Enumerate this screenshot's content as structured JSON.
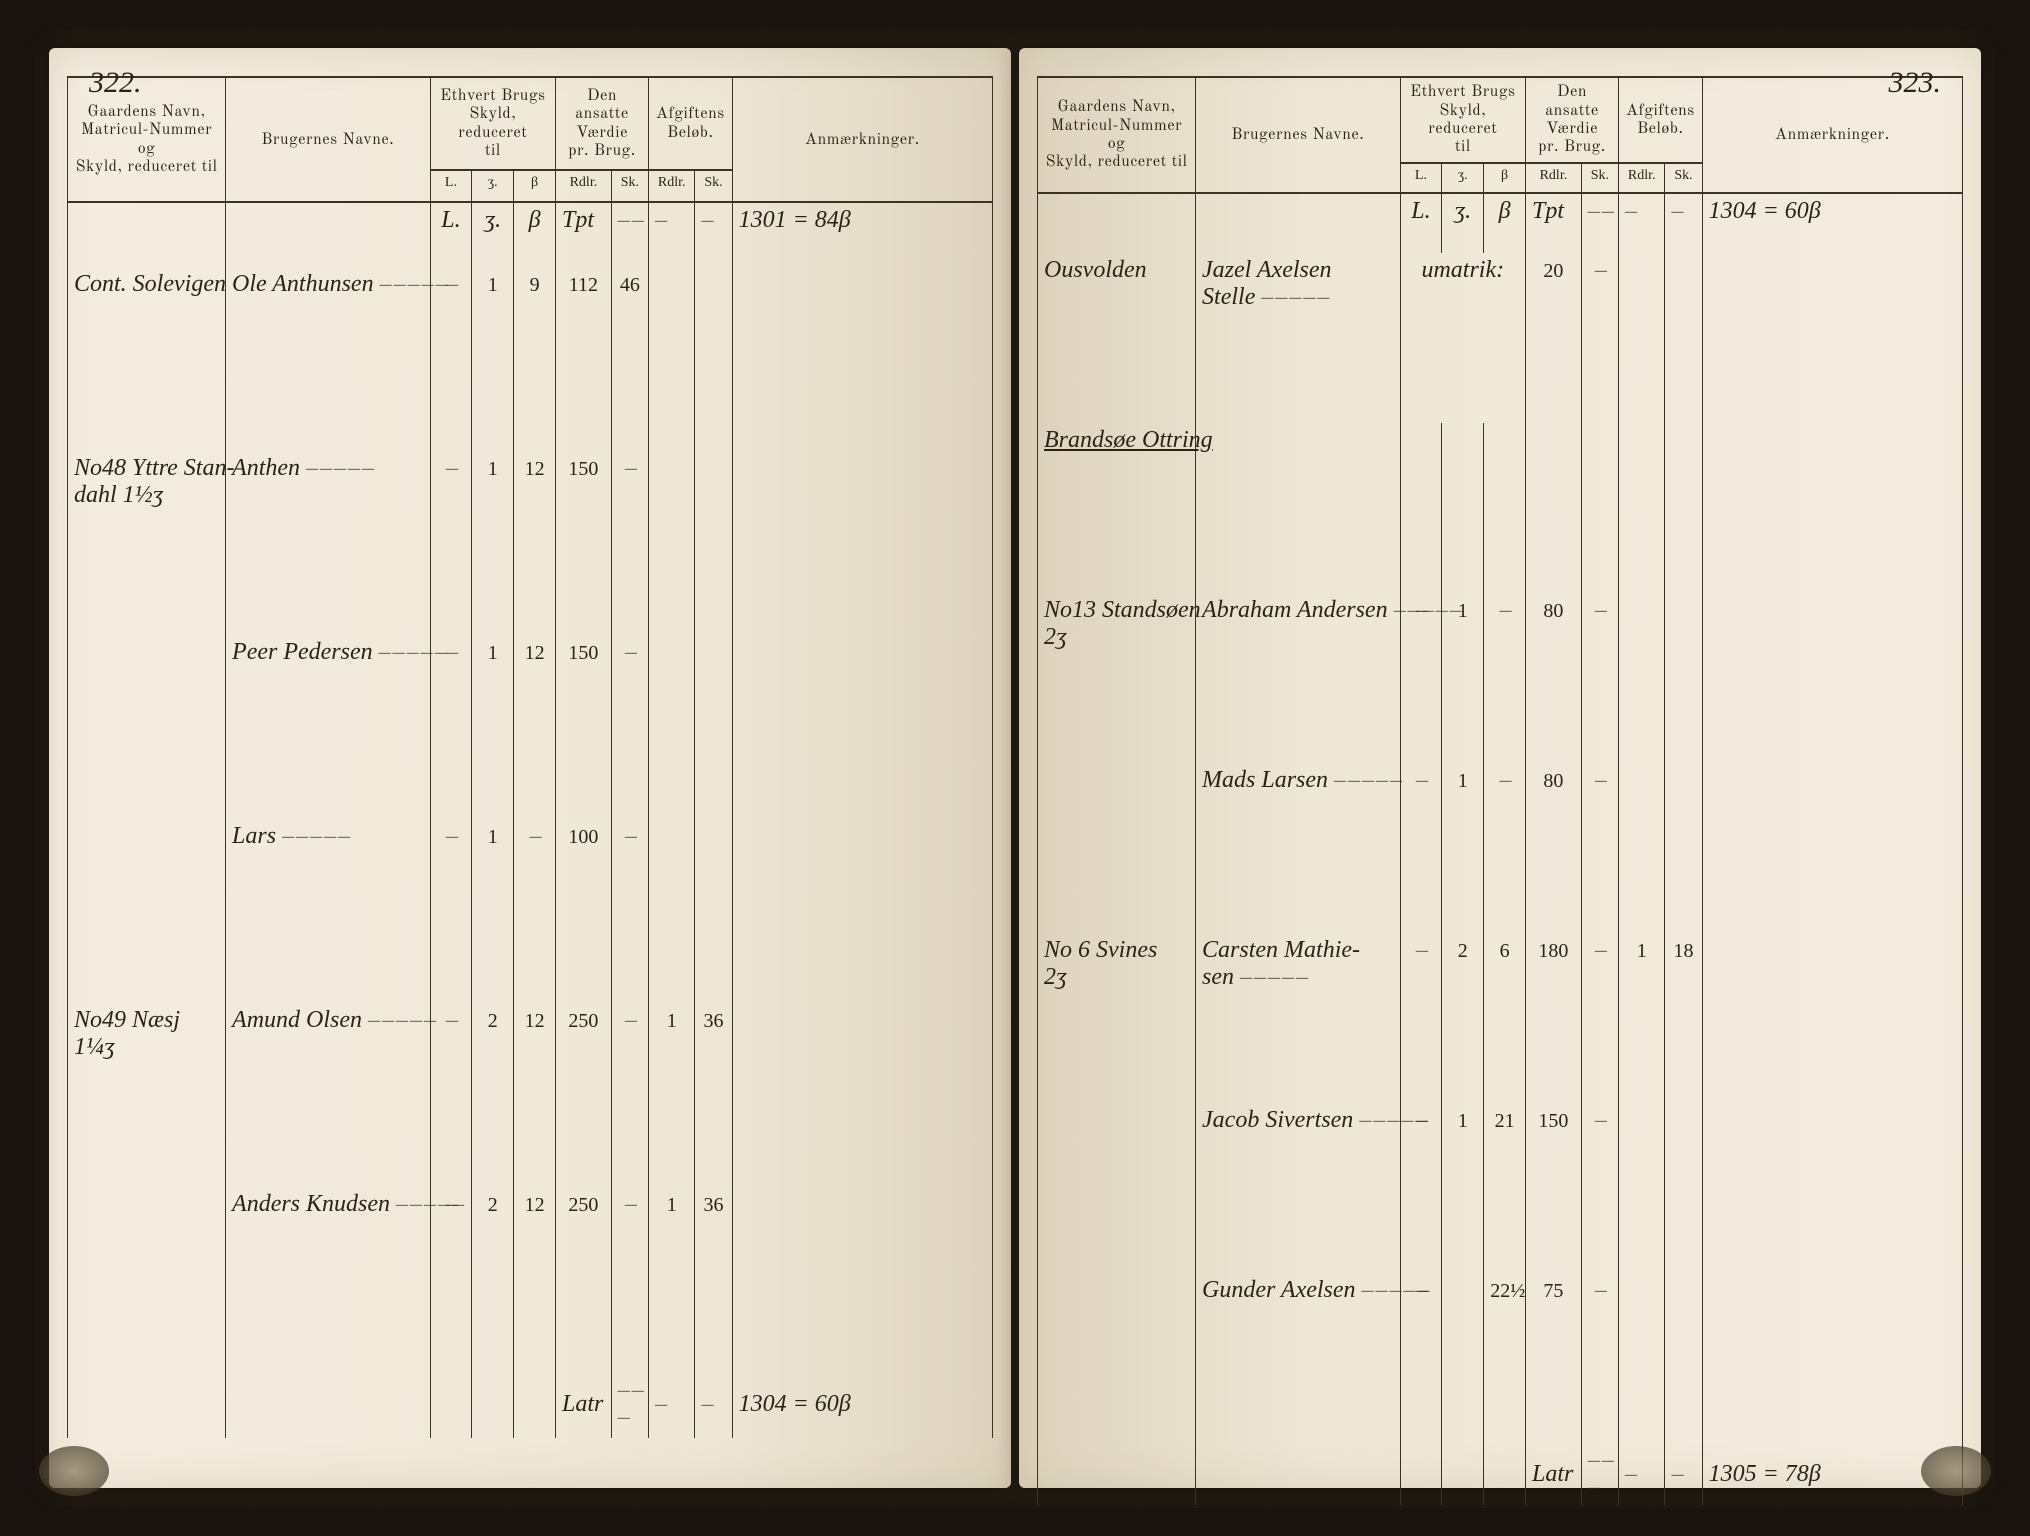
{
  "colors": {
    "ink": "#2a2418",
    "rule": "#3a3426",
    "paper_light": "#f4ede0",
    "paper_mid": "#eee6d6",
    "paper_shadow": "#ddd3bd",
    "cover": "#1a1410"
  },
  "headers": {
    "gaard": "Gaardens Navn,\nMatricul-Nummer og\nSkyld, reduceret til",
    "bruger": "Brugernes Navne.",
    "skyld": "Ethvert Brugs\nSkyld, reduceret\ntil",
    "vaerdie": "Den ansatte\nVærdie\npr. Brug.",
    "afgift": "Afgiftens\nBeløb.",
    "anm": "Anmærkninger.",
    "sub_l": "L.",
    "sub_s": "ʒ.",
    "sub_b": "β",
    "sub_rdlr": "Rdlr.",
    "sub_sk": "Sk."
  },
  "left": {
    "page_no": "322.",
    "carry_tpt": "Tpt",
    "carry_sum": "1301 = 84β",
    "rows": [
      {
        "gaard": "Cont. Solevigen",
        "bruger": "Ole Anthunsen",
        "sk": [
          "–",
          "1",
          "9"
        ],
        "val": [
          "112",
          "46"
        ],
        "afg": [
          "",
          ""
        ],
        "anm": ""
      },
      {
        "gaard": "No48 Yttre Stan-\ndahl  1½ʒ",
        "bruger": "Anthen",
        "sk": [
          "–",
          "1",
          "12"
        ],
        "val": [
          "150",
          "–"
        ],
        "afg": [
          "",
          ""
        ],
        "anm": ""
      },
      {
        "gaard": "",
        "bruger": "Peer Pedersen",
        "sk": [
          "–",
          "1",
          "12"
        ],
        "val": [
          "150",
          "–"
        ],
        "afg": [
          "",
          ""
        ],
        "anm": ""
      },
      {
        "gaard": "",
        "bruger": "Lars",
        "sk": [
          "–",
          "1",
          "–"
        ],
        "val": [
          "100",
          "–"
        ],
        "afg": [
          "",
          ""
        ],
        "anm": ""
      },
      {
        "gaard": "No49 Næsj\n1¼ʒ",
        "bruger": "Amund Olsen",
        "sk": [
          "–",
          "2",
          "12"
        ],
        "val": [
          "250",
          "–"
        ],
        "afg": [
          "1",
          "36"
        ],
        "anm": ""
      },
      {
        "gaard": "",
        "bruger": "Anders Knudsen",
        "sk": [
          "–",
          "2",
          "12"
        ],
        "val": [
          "250",
          "–"
        ],
        "afg": [
          "1",
          "36"
        ],
        "anm": ""
      }
    ],
    "sum_label": "Latr",
    "sum_value": "1304 = 60β"
  },
  "right": {
    "page_no": "323.",
    "carry_tpt": "Tpt",
    "carry_sum": "1304 = 60β",
    "section": "Brandsøe Ottring",
    "rows": [
      {
        "gaard": "Ousvolden",
        "bruger": "Jazel Axelsen\nStelle",
        "sk": [
          "",
          "",
          ""
        ],
        "sk_text": "umatrik:",
        "val": [
          "20",
          "–"
        ],
        "afg": [
          "",
          ""
        ],
        "anm": ""
      },
      {
        "gaard": "No13 Standsøen\n2ʒ",
        "bruger": "Abraham Andersen",
        "sk": [
          "–",
          "1",
          "–"
        ],
        "val": [
          "80",
          "–"
        ],
        "afg": [
          "",
          ""
        ],
        "anm": ""
      },
      {
        "gaard": "",
        "bruger": "Mads Larsen",
        "sk": [
          "–",
          "1",
          "–"
        ],
        "val": [
          "80",
          "–"
        ],
        "afg": [
          "",
          ""
        ],
        "anm": ""
      },
      {
        "gaard": "No 6  Svines\n2ʒ",
        "bruger": "Carsten Mathie-\nsen",
        "sk": [
          "–",
          "2",
          "6"
        ],
        "val": [
          "180",
          "–"
        ],
        "afg": [
          "1",
          "18"
        ],
        "anm": ""
      },
      {
        "gaard": "",
        "bruger": "Jacob Sivertsen",
        "sk": [
          "–",
          "1",
          "21"
        ],
        "val": [
          "150",
          "–"
        ],
        "afg": [
          "",
          ""
        ],
        "anm": ""
      },
      {
        "gaard": "",
        "bruger": "Gunder Axelsen",
        "sk": [
          "–",
          "",
          "22½"
        ],
        "val": [
          "75",
          "–"
        ],
        "afg": [
          "",
          ""
        ],
        "anm": ""
      }
    ],
    "sum_label": "Latr",
    "sum_value": "1305 = 78β"
  }
}
